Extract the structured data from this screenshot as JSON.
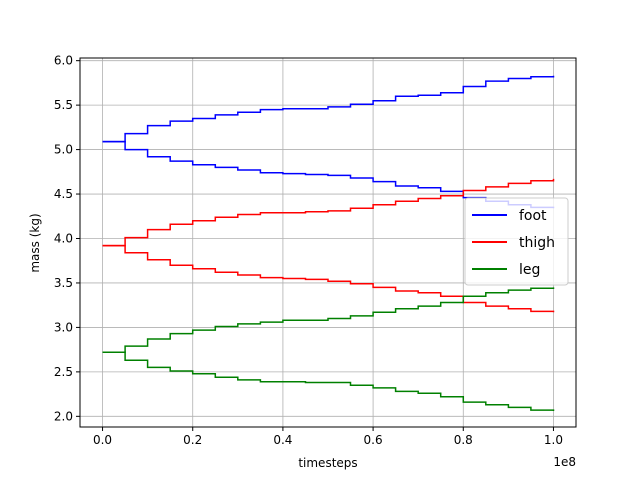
{
  "chart_data": {
    "type": "line",
    "title": "",
    "xlabel": "timesteps",
    "ylabel": "mass (kg)",
    "x_offset_text": "1e8",
    "xlim": [
      -0.05,
      1.05
    ],
    "ylim": [
      1.88,
      6.03
    ],
    "xticks": [
      0.0,
      0.2,
      0.4,
      0.6,
      0.8,
      1.0
    ],
    "xtick_labels": [
      "0.0",
      "0.2",
      "0.4",
      "0.6",
      "0.8",
      "1.0"
    ],
    "yticks": [
      2.0,
      2.5,
      3.0,
      3.5,
      4.0,
      4.5,
      5.0,
      5.5,
      6.0
    ],
    "ytick_labels": [
      "2.0",
      "2.5",
      "3.0",
      "3.5",
      "4.0",
      "4.5",
      "5.0",
      "5.5",
      "6.0"
    ],
    "grid": true,
    "legend": {
      "placement": "center-right",
      "entries": [
        "foot",
        "thigh",
        "leg"
      ]
    },
    "x": [
      0.0,
      0.05,
      0.1,
      0.15,
      0.2,
      0.25,
      0.3,
      0.35,
      0.4,
      0.45,
      0.5,
      0.55,
      0.6,
      0.65,
      0.7,
      0.75,
      0.8,
      0.85,
      0.9,
      0.95,
      1.0
    ],
    "series": [
      {
        "name": "foot",
        "color": "#0000ff",
        "values": [
          5.09,
          5.18,
          5.27,
          5.32,
          5.35,
          5.39,
          5.42,
          5.45,
          5.46,
          5.46,
          5.48,
          5.51,
          5.55,
          5.6,
          5.61,
          5.64,
          5.71,
          5.77,
          5.8,
          5.82,
          5.83
        ]
      },
      {
        "name": "",
        "color": "#0000ff",
        "values": [
          5.09,
          5.0,
          4.92,
          4.87,
          4.83,
          4.8,
          4.77,
          4.74,
          4.73,
          4.72,
          4.71,
          4.68,
          4.64,
          4.59,
          4.57,
          4.53,
          4.46,
          4.42,
          4.38,
          4.35,
          4.34
        ]
      },
      {
        "name": "thigh",
        "color": "#ff0000",
        "values": [
          3.92,
          4.01,
          4.1,
          4.16,
          4.2,
          4.24,
          4.27,
          4.29,
          4.29,
          4.3,
          4.31,
          4.34,
          4.38,
          4.42,
          4.45,
          4.48,
          4.54,
          4.58,
          4.62,
          4.65,
          4.67
        ]
      },
      {
        "name": "",
        "color": "#ff0000",
        "values": [
          3.92,
          3.84,
          3.76,
          3.7,
          3.66,
          3.62,
          3.59,
          3.56,
          3.55,
          3.54,
          3.52,
          3.49,
          3.45,
          3.41,
          3.39,
          3.35,
          3.28,
          3.24,
          3.21,
          3.18,
          3.17
        ]
      },
      {
        "name": "leg",
        "color": "#008000",
        "values": [
          2.72,
          2.79,
          2.87,
          2.93,
          2.97,
          3.01,
          3.04,
          3.06,
          3.08,
          3.08,
          3.1,
          3.13,
          3.17,
          3.21,
          3.24,
          3.28,
          3.35,
          3.39,
          3.42,
          3.44,
          3.45
        ]
      },
      {
        "name": "",
        "color": "#008000",
        "values": [
          2.72,
          2.63,
          2.55,
          2.51,
          2.48,
          2.44,
          2.41,
          2.39,
          2.39,
          2.38,
          2.38,
          2.35,
          2.32,
          2.28,
          2.26,
          2.22,
          2.16,
          2.13,
          2.1,
          2.07,
          2.06
        ]
      }
    ]
  }
}
